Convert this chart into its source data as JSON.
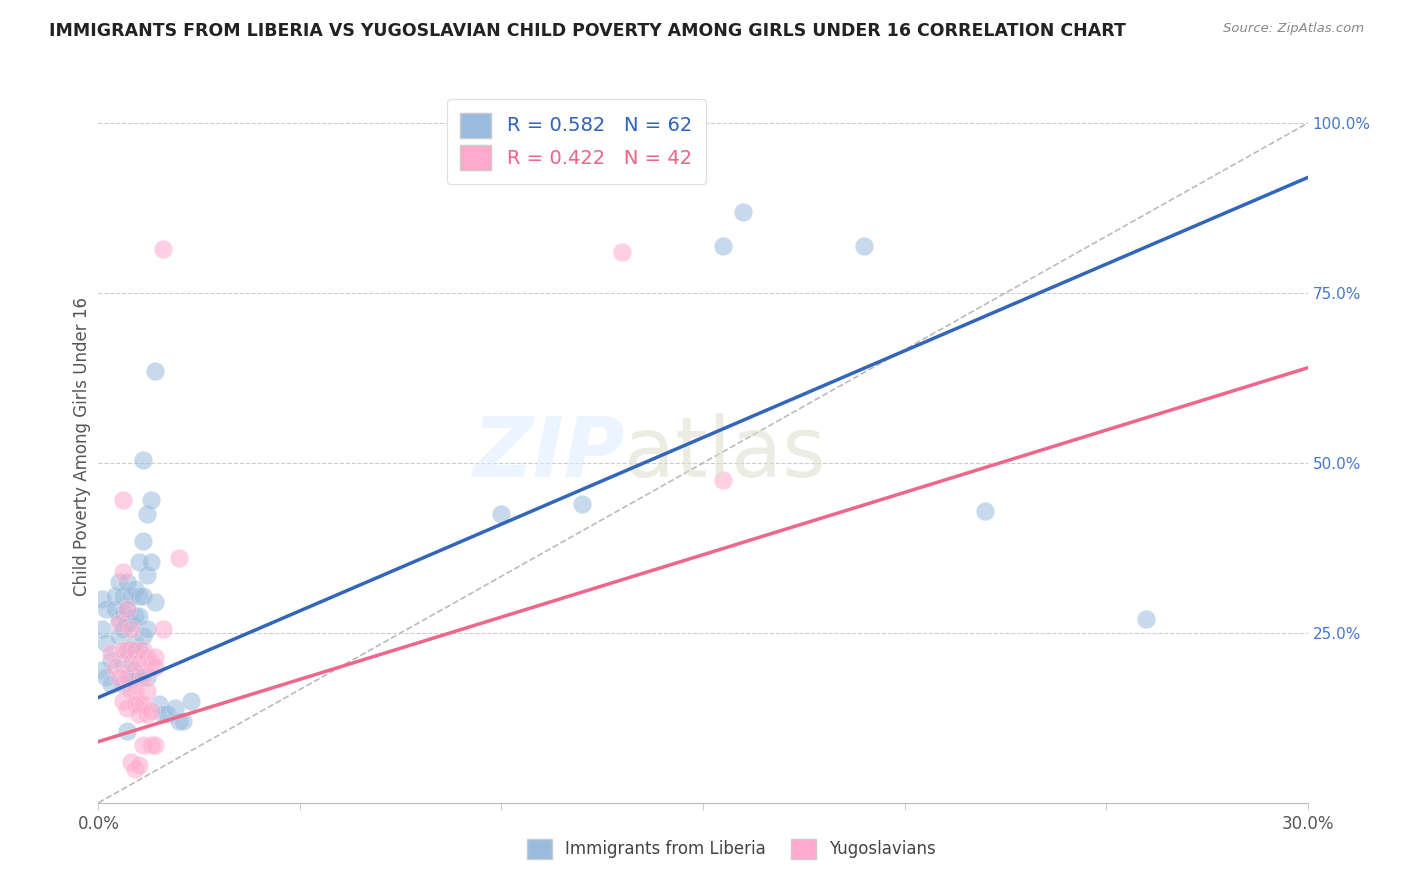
{
  "title": "IMMIGRANTS FROM LIBERIA VS YUGOSLAVIAN CHILD POVERTY AMONG GIRLS UNDER 16 CORRELATION CHART",
  "source": "Source: ZipAtlas.com",
  "ylabel": "Child Poverty Among Girls Under 16",
  "legend_label1": "Immigrants from Liberia",
  "legend_label2": "Yugoslavians",
  "R1": 0.582,
  "N1": 62,
  "R2": 0.422,
  "N2": 42,
  "color_blue": "#99BBDD",
  "color_pink": "#FFAACC",
  "color_blue_line": "#3366BB",
  "color_pink_line": "#EE6688",
  "color_gray_line": "#BBBBBB",
  "blue_dots": [
    [
      0.001,
      0.3
    ],
    [
      0.002,
      0.285
    ],
    [
      0.001,
      0.255
    ],
    [
      0.002,
      0.235
    ],
    [
      0.003,
      0.21
    ],
    [
      0.001,
      0.195
    ],
    [
      0.002,
      0.185
    ],
    [
      0.003,
      0.175
    ],
    [
      0.004,
      0.305
    ],
    [
      0.004,
      0.285
    ],
    [
      0.005,
      0.325
    ],
    [
      0.005,
      0.27
    ],
    [
      0.005,
      0.245
    ],
    [
      0.006,
      0.305
    ],
    [
      0.006,
      0.28
    ],
    [
      0.006,
      0.255
    ],
    [
      0.006,
      0.205
    ],
    [
      0.006,
      0.175
    ],
    [
      0.007,
      0.325
    ],
    [
      0.007,
      0.285
    ],
    [
      0.007,
      0.265
    ],
    [
      0.007,
      0.225
    ],
    [
      0.007,
      0.105
    ],
    [
      0.008,
      0.305
    ],
    [
      0.008,
      0.265
    ],
    [
      0.008,
      0.225
    ],
    [
      0.008,
      0.185
    ],
    [
      0.009,
      0.315
    ],
    [
      0.009,
      0.275
    ],
    [
      0.009,
      0.235
    ],
    [
      0.009,
      0.195
    ],
    [
      0.01,
      0.355
    ],
    [
      0.01,
      0.305
    ],
    [
      0.01,
      0.275
    ],
    [
      0.01,
      0.225
    ],
    [
      0.01,
      0.185
    ],
    [
      0.011,
      0.505
    ],
    [
      0.011,
      0.385
    ],
    [
      0.011,
      0.305
    ],
    [
      0.011,
      0.245
    ],
    [
      0.012,
      0.425
    ],
    [
      0.012,
      0.335
    ],
    [
      0.012,
      0.255
    ],
    [
      0.012,
      0.185
    ],
    [
      0.013,
      0.445
    ],
    [
      0.013,
      0.355
    ],
    [
      0.014,
      0.635
    ],
    [
      0.014,
      0.295
    ],
    [
      0.015,
      0.145
    ],
    [
      0.016,
      0.13
    ],
    [
      0.017,
      0.13
    ],
    [
      0.019,
      0.14
    ],
    [
      0.02,
      0.12
    ],
    [
      0.021,
      0.12
    ],
    [
      0.023,
      0.15
    ],
    [
      0.1,
      0.425
    ],
    [
      0.12,
      0.44
    ],
    [
      0.155,
      0.82
    ],
    [
      0.16,
      0.87
    ],
    [
      0.19,
      0.82
    ],
    [
      0.22,
      0.43
    ],
    [
      0.26,
      0.27
    ]
  ],
  "pink_dots": [
    [
      0.003,
      0.22
    ],
    [
      0.004,
      0.2
    ],
    [
      0.005,
      0.265
    ],
    [
      0.005,
      0.185
    ],
    [
      0.006,
      0.445
    ],
    [
      0.006,
      0.34
    ],
    [
      0.006,
      0.225
    ],
    [
      0.006,
      0.15
    ],
    [
      0.007,
      0.285
    ],
    [
      0.007,
      0.225
    ],
    [
      0.007,
      0.185
    ],
    [
      0.007,
      0.14
    ],
    [
      0.008,
      0.255
    ],
    [
      0.008,
      0.205
    ],
    [
      0.008,
      0.165
    ],
    [
      0.008,
      0.06
    ],
    [
      0.009,
      0.225
    ],
    [
      0.009,
      0.165
    ],
    [
      0.009,
      0.145
    ],
    [
      0.009,
      0.05
    ],
    [
      0.01,
      0.205
    ],
    [
      0.01,
      0.145
    ],
    [
      0.01,
      0.13
    ],
    [
      0.01,
      0.055
    ],
    [
      0.011,
      0.225
    ],
    [
      0.011,
      0.185
    ],
    [
      0.011,
      0.145
    ],
    [
      0.011,
      0.085
    ],
    [
      0.012,
      0.215
    ],
    [
      0.012,
      0.165
    ],
    [
      0.012,
      0.13
    ],
    [
      0.013,
      0.205
    ],
    [
      0.013,
      0.135
    ],
    [
      0.013,
      0.085
    ],
    [
      0.014,
      0.215
    ],
    [
      0.014,
      0.2
    ],
    [
      0.014,
      0.085
    ],
    [
      0.016,
      0.815
    ],
    [
      0.016,
      0.255
    ],
    [
      0.02,
      0.36
    ],
    [
      0.13,
      0.81
    ],
    [
      0.155,
      0.475
    ]
  ],
  "xlim": [
    0,
    0.3
  ],
  "ylim": [
    0,
    1.05
  ],
  "blue_line_x": [
    0.0,
    0.3
  ],
  "blue_line_y": [
    0.155,
    0.92
  ],
  "pink_line_x": [
    0.0,
    0.3
  ],
  "pink_line_y": [
    0.09,
    0.64
  ],
  "gray_line_x": [
    0.0,
    0.3
  ],
  "gray_line_y": [
    0.0,
    1.0
  ],
  "x_ticks": [
    0.0,
    0.05,
    0.1,
    0.15,
    0.2,
    0.25,
    0.3
  ],
  "y_ticks": [
    0.25,
    0.5,
    0.75,
    1.0
  ],
  "y_tick_labels": [
    "25.0%",
    "50.0%",
    "75.0%",
    "100.0%"
  ]
}
